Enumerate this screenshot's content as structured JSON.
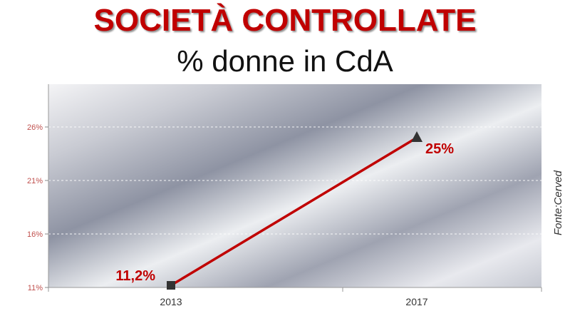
{
  "title": "SOCIETÀ CONTROLLATE",
  "subtitle": "% donne in CdA",
  "source": "Fonte:Cerved",
  "colors": {
    "title": "#c00000",
    "line": "#c00000",
    "tick_label": "#c0504d",
    "marker": "#333333"
  },
  "chart_data": {
    "type": "line",
    "categories": [
      "2013",
      "2017"
    ],
    "series": [
      {
        "values": [
          11.2,
          25
        ],
        "labels": [
          "11,2%",
          "25%"
        ],
        "markers": [
          "square",
          "triangle"
        ]
      }
    ],
    "ylim": [
      11,
      30
    ],
    "yticks": [
      11,
      16,
      21,
      26
    ],
    "ytick_labels": [
      "11%",
      "16%",
      "21%",
      "26%"
    ],
    "grid": true,
    "legend": "none"
  }
}
